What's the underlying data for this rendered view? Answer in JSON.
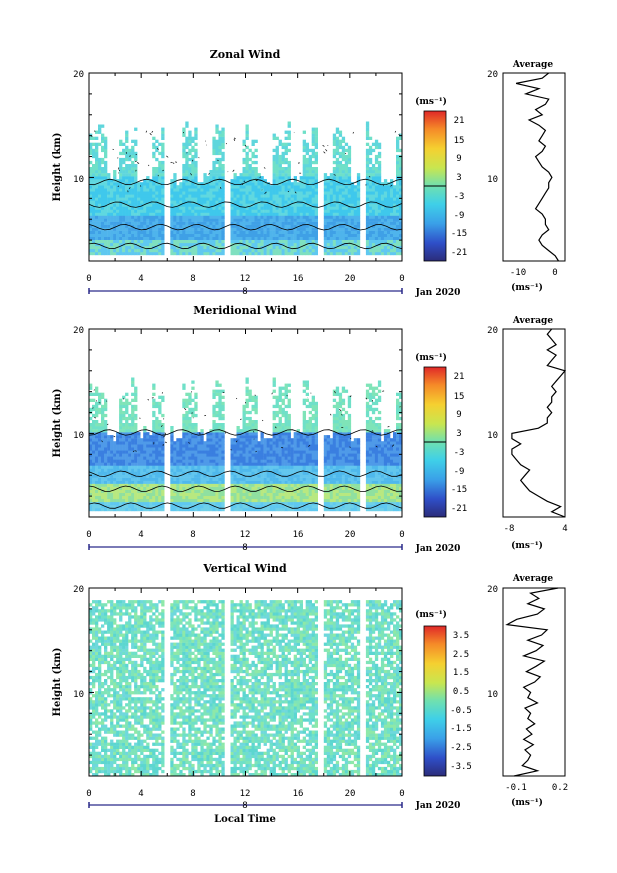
{
  "chart_data": [
    {
      "type": "heatmap",
      "title": "Zonal Wind",
      "ylabel": "Height (km)",
      "ylim": [
        2,
        20
      ],
      "yticks": [
        "10",
        "20"
      ],
      "xticks": [
        "0",
        "4",
        "8",
        "12",
        "16",
        "20",
        "0"
      ],
      "date_label": "Jan 2020",
      "day_label": "8",
      "colorbar_unit": "(ms⁻¹)",
      "colorbar_ticks": [
        "21",
        "15",
        "9",
        "3",
        "-3",
        "-9",
        "-15",
        "-21"
      ],
      "colorbar_range": [
        -24,
        24
      ],
      "profile": {
        "title": "Average",
        "xlabel": "(ms⁻¹)",
        "xticks": [
          "-10",
          "0"
        ],
        "xlim": [
          -16,
          3
        ],
        "yticks": [
          "10",
          "20"
        ],
        "z": [
          2,
          2.5,
          3,
          3.5,
          4,
          4.5,
          5,
          5.5,
          6,
          6.5,
          7,
          7.5,
          8,
          8.5,
          9,
          9.5,
          10,
          10.5,
          11,
          11.5,
          12,
          12.5,
          13,
          13.5,
          14,
          14.5,
          15,
          15.5,
          16,
          16.5,
          17,
          17.5,
          18,
          18.5,
          19,
          19.5,
          20
        ],
        "values": [
          1,
          0,
          -2,
          -4,
          -5,
          -4,
          -2,
          -3,
          -3,
          -4,
          -6,
          -5,
          -4,
          -3,
          -2,
          -2,
          -1,
          -2,
          -4,
          -5,
          -6,
          -4,
          -3,
          -5,
          -4,
          -3,
          -5,
          -8,
          -4,
          -6,
          -3,
          -2,
          -9,
          -5,
          -12,
          -4,
          -2
        ]
      }
    },
    {
      "type": "heatmap",
      "title": "Meridional Wind",
      "ylabel": "Height (km)",
      "ylim": [
        2,
        20
      ],
      "yticks": [
        "10",
        "20"
      ],
      "xticks": [
        "0",
        "4",
        "8",
        "12",
        "16",
        "20",
        "0"
      ],
      "date_label": "Jan 2020",
      "day_label": "8",
      "colorbar_unit": "(ms⁻¹)",
      "colorbar_ticks": [
        "21",
        "15",
        "9",
        "3",
        "-3",
        "-9",
        "-15",
        "-21"
      ],
      "colorbar_range": [
        -24,
        24
      ],
      "profile": {
        "title": "Average",
        "xlabel": "(ms⁻¹)",
        "xticks": [
          "-8",
          "4"
        ],
        "xlim": [
          -10,
          4
        ],
        "yticks": [
          "10",
          "20"
        ],
        "z": [
          2,
          2.5,
          3,
          3.5,
          4,
          4.5,
          5,
          5.5,
          6,
          6.5,
          7,
          7.5,
          8,
          8.5,
          9,
          9.5,
          10,
          10.5,
          11,
          11.5,
          12,
          12.5,
          13,
          13.5,
          14,
          14.5,
          15,
          15.5,
          16,
          16.5,
          17,
          17.5,
          18,
          18.5,
          19,
          19.5,
          20
        ],
        "values": [
          4,
          1,
          3,
          0,
          -2,
          -4,
          -5,
          -6,
          -5,
          -4,
          -6,
          -7,
          -8,
          -8,
          -6,
          -8,
          -8,
          -2,
          0,
          0,
          1,
          0,
          1,
          1,
          2,
          1,
          2,
          3,
          4,
          0,
          1,
          2,
          0,
          2,
          1,
          0,
          1
        ]
      }
    },
    {
      "type": "heatmap",
      "title": "Vertical Wind",
      "ylabel": "Height (km)",
      "xlabel": "Local Time",
      "ylim": [
        2,
        20
      ],
      "yticks": [
        "10",
        "20"
      ],
      "xticks": [
        "0",
        "4",
        "8",
        "12",
        "16",
        "20",
        "0"
      ],
      "date_label": "Jan 2020",
      "day_label": "8",
      "colorbar_unit": "(ms⁻¹)",
      "colorbar_ticks": [
        "3.5",
        "2.5",
        "1.5",
        "0.5",
        "-0.5",
        "-1.5",
        "-2.5",
        "-3.5"
      ],
      "colorbar_range": [
        -4,
        4
      ],
      "profile": {
        "title": "Average",
        "xlabel": "(ms⁻¹)",
        "xticks": [
          "-0.1",
          "0.2"
        ],
        "xlim": [
          -0.2,
          0.25
        ],
        "yticks": [
          "10",
          "20"
        ],
        "z": [
          2,
          2.5,
          3,
          3.5,
          4,
          4.5,
          5,
          5.5,
          6,
          6.5,
          7,
          7.5,
          8,
          8.5,
          9,
          9.5,
          10,
          10.5,
          11,
          11.5,
          12,
          12.5,
          13,
          13.5,
          14,
          14.5,
          15,
          15.5,
          16,
          16.5,
          17,
          17.5,
          18,
          18.5,
          19,
          19.5,
          20
        ],
        "values": [
          -0.12,
          0.05,
          -0.06,
          -0.02,
          0.0,
          -0.04,
          0.02,
          -0.05,
          0.01,
          -0.03,
          0.03,
          -0.02,
          0.0,
          -0.04,
          0.05,
          -0.02,
          0.0,
          -0.05,
          0.03,
          0.07,
          -0.03,
          0.04,
          0.1,
          -0.05,
          0.04,
          0.09,
          -0.02,
          0.08,
          0.12,
          -0.17,
          -0.1,
          0.05,
          0.1,
          -0.02,
          0.06,
          0.0,
          0.2
        ]
      }
    }
  ]
}
